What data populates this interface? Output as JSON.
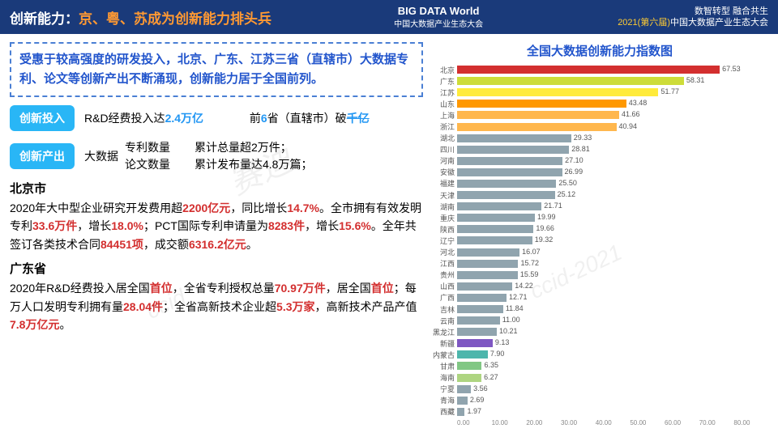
{
  "header": {
    "title_prefix": "创新能力：",
    "title_highlight": "京、粤、苏成为创新能力排头兵",
    "logo_top": "BIG DATA World",
    "logo_sub": "中国大数据产业生态大会",
    "right1": "数智转型 融合共生",
    "right2_y": "2021(第六届)",
    "right2": "中国大数据产业生态大会"
  },
  "highlight": "受惠于较高强度的研发投入，北京、广东、江苏三省（直辖市）大数据专利、论文等创新产出不断涌现，创新能力居于全国前列。",
  "input_tag": "创新投入",
  "input_t1a": "R&D经费投入达",
  "input_t1b": "2.4万亿",
  "input_t2a": "前",
  "input_t2b": "6",
  "input_t2c": "省（直辖市）破",
  "input_t2d": "千亿",
  "output_tag": "创新产出",
  "output_pre": "大数据",
  "output_l1": "专利数量",
  "output_l2": "论文数量",
  "output_r1": "累计总量超2万件；",
  "output_r2": "累计发布量达4.8万篇；",
  "beijing": {
    "title": "北京市",
    "body": "2020年大中型企业研究开发费用超<span class='red'>2200亿元</span>，同比增长<span class='red'>14.7%</span>。全市拥有有效发明专利<span class='red'>33.6万件</span>，增长<span class='red'>18.0%</span>；PCT国际专利申请量为<span class='red'>8283件</span>，增长<span class='red'>15.6%</span>。全年共签订各类技术合同<span class='red'>84451项</span>，成交额<span class='red'>6316.2亿元</span>。"
  },
  "guangdong": {
    "title": "广东省",
    "body": "2020年R&D经费投入居全国<span class='red'>首位</span>，全省专利授权总量<span class='red'>70.97万件</span>，居全国<span class='red'>首位</span>；每万人口发明专利拥有量<span class='red'>28.04件</span>；全省高新技术企业超<span class='red'>5.3万家</span>，高新技术产品产值<span class='red'>7.8万亿元</span>。"
  },
  "chart": {
    "title": "全国大数据创新能力指数图",
    "max": 80,
    "ticks": [
      "0.00",
      "10.00",
      "20.00",
      "30.00",
      "40.00",
      "50.00",
      "60.00",
      "70.00",
      "80.00"
    ],
    "bars": [
      {
        "label": "北京",
        "value": 67.53,
        "color": "#d32f2f"
      },
      {
        "label": "广东",
        "value": 58.31,
        "color": "#cddc39"
      },
      {
        "label": "江苏",
        "value": 51.77,
        "color": "#ffeb3b"
      },
      {
        "label": "山东",
        "value": 43.48,
        "color": "#ff9800"
      },
      {
        "label": "上海",
        "value": 41.66,
        "color": "#ffb74d"
      },
      {
        "label": "浙江",
        "value": 40.94,
        "color": "#ffb74d"
      },
      {
        "label": "湖北",
        "value": 29.33,
        "color": "#90a4ae"
      },
      {
        "label": "四川",
        "value": 28.81,
        "color": "#90a4ae"
      },
      {
        "label": "河南",
        "value": 27.1,
        "color": "#90a4ae"
      },
      {
        "label": "安徽",
        "value": 26.99,
        "color": "#90a4ae"
      },
      {
        "label": "福建",
        "value": 25.5,
        "color": "#90a4ae"
      },
      {
        "label": "天津",
        "value": 25.12,
        "color": "#90a4ae"
      },
      {
        "label": "湖南",
        "value": 21.71,
        "color": "#90a4ae"
      },
      {
        "label": "重庆",
        "value": 19.99,
        "color": "#90a4ae"
      },
      {
        "label": "陕西",
        "value": 19.66,
        "color": "#90a4ae"
      },
      {
        "label": "辽宁",
        "value": 19.32,
        "color": "#90a4ae"
      },
      {
        "label": "河北",
        "value": 16.07,
        "color": "#90a4ae"
      },
      {
        "label": "江西",
        "value": 15.72,
        "color": "#90a4ae"
      },
      {
        "label": "贵州",
        "value": 15.59,
        "color": "#90a4ae"
      },
      {
        "label": "山西",
        "value": 14.22,
        "color": "#90a4ae"
      },
      {
        "label": "广西",
        "value": 12.71,
        "color": "#90a4ae"
      },
      {
        "label": "吉林",
        "value": 11.84,
        "color": "#90a4ae"
      },
      {
        "label": "云南",
        "value": 11.0,
        "color": "#90a4ae"
      },
      {
        "label": "黑龙江",
        "value": 10.21,
        "color": "#90a4ae"
      },
      {
        "label": "新疆",
        "value": 9.13,
        "color": "#7e57c2"
      },
      {
        "label": "内蒙古",
        "value": 7.9,
        "color": "#4db6ac"
      },
      {
        "label": "甘肃",
        "value": 6.35,
        "color": "#81c784"
      },
      {
        "label": "海南",
        "value": 6.27,
        "color": "#aed581"
      },
      {
        "label": "宁夏",
        "value": 3.56,
        "color": "#90a4ae"
      },
      {
        "label": "青海",
        "value": 2.69,
        "color": "#90a4ae"
      },
      {
        "label": "西藏",
        "value": 1.97,
        "color": "#90a4ae"
      }
    ]
  }
}
